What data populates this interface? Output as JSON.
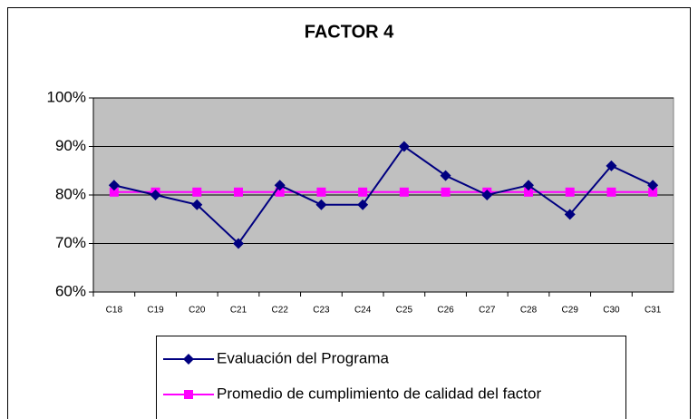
{
  "chart_data": {
    "type": "line",
    "title": "FACTOR 4",
    "categories": [
      "C18",
      "C19",
      "C20",
      "C21",
      "C22",
      "C23",
      "C24",
      "C25",
      "C26",
      "C27",
      "C28",
      "C29",
      "C30",
      "C31"
    ],
    "series": [
      {
        "name": "Evaluación del Programa",
        "color": "#000080",
        "marker": "diamond",
        "values": [
          82,
          80,
          78,
          70,
          82,
          78,
          78,
          90,
          84,
          80,
          82,
          76,
          86,
          82
        ]
      },
      {
        "name": "Promedio de cumplimiento de calidad del factor",
        "color": "#ff00ff",
        "marker": "square",
        "values": [
          80.6,
          80.6,
          80.6,
          80.6,
          80.6,
          80.6,
          80.6,
          80.6,
          80.6,
          80.6,
          80.6,
          80.6,
          80.6,
          80.6
        ]
      }
    ],
    "ylim": [
      60,
      100
    ],
    "yticks": [
      {
        "value": 60,
        "label": "60%"
      },
      {
        "value": 70,
        "label": "70%"
      },
      {
        "value": 80,
        "label": "80%"
      },
      {
        "value": 90,
        "label": "90%"
      },
      {
        "value": 100,
        "label": "100%"
      }
    ],
    "grid": true,
    "legend": "bottom",
    "plot_color": "#c0c0c0"
  }
}
